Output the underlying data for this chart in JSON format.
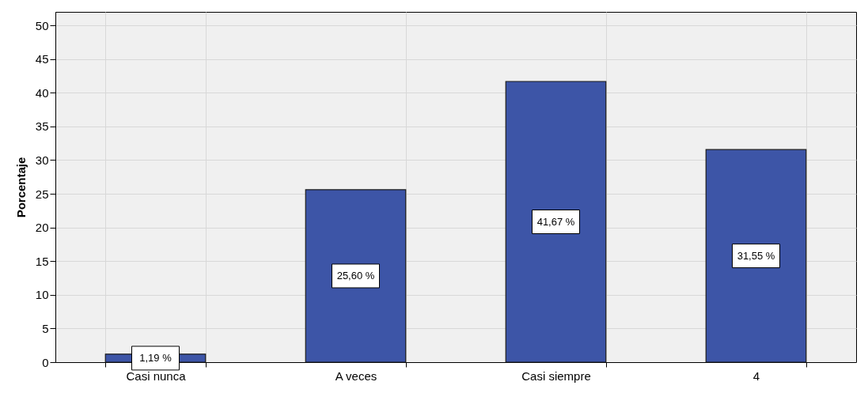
{
  "chart_data": {
    "type": "bar",
    "ylabel": "Porcentaje",
    "categories": [
      "Casi nunca",
      "A veces",
      "Casi siempre",
      "4"
    ],
    "values": [
      1.19,
      25.6,
      41.67,
      31.55
    ],
    "value_labels": [
      "1,19 %",
      "25,60 %",
      "41,67 %",
      "31,55 %"
    ],
    "color": "#3d55a7",
    "ylim": [
      0,
      52
    ],
    "yticks": [
      0,
      5,
      10,
      15,
      20,
      25,
      30,
      35,
      40,
      45,
      50
    ],
    "grid": true
  }
}
